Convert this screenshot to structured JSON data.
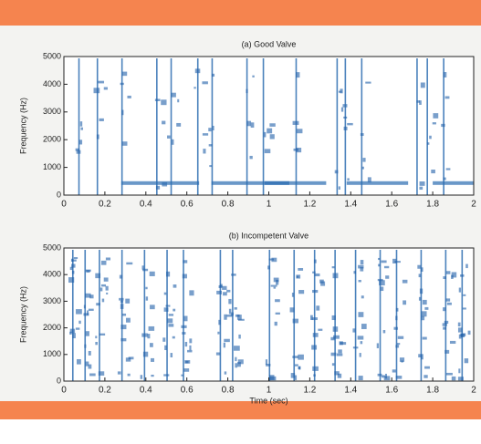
{
  "chart_data": [
    {
      "type": "spectrogram",
      "title": "(a) Good Valve",
      "ylabel": "Frequency (Hz)",
      "xlim": [
        0,
        2
      ],
      "ylim": [
        0,
        5000
      ],
      "xticks": [
        0,
        0.2,
        0.4,
        0.6,
        0.8,
        1,
        1.2,
        1.4,
        1.6,
        1.8,
        2
      ],
      "yticks": [
        0,
        1000,
        2000,
        3000,
        4000,
        5000
      ]
    },
    {
      "type": "spectrogram",
      "title": "(b) Incompetent Valve",
      "xlabel": "Time (sec)",
      "ylabel": "Frequency (Hz)",
      "xlim": [
        0,
        2
      ],
      "ylim": [
        0,
        5000
      ],
      "xticks": [
        0,
        0.2,
        0.4,
        0.6,
        0.8,
        1,
        1.2,
        1.4,
        1.6,
        1.8,
        2
      ],
      "yticks": [
        0,
        1000,
        2000,
        3000,
        4000,
        5000
      ]
    }
  ]
}
